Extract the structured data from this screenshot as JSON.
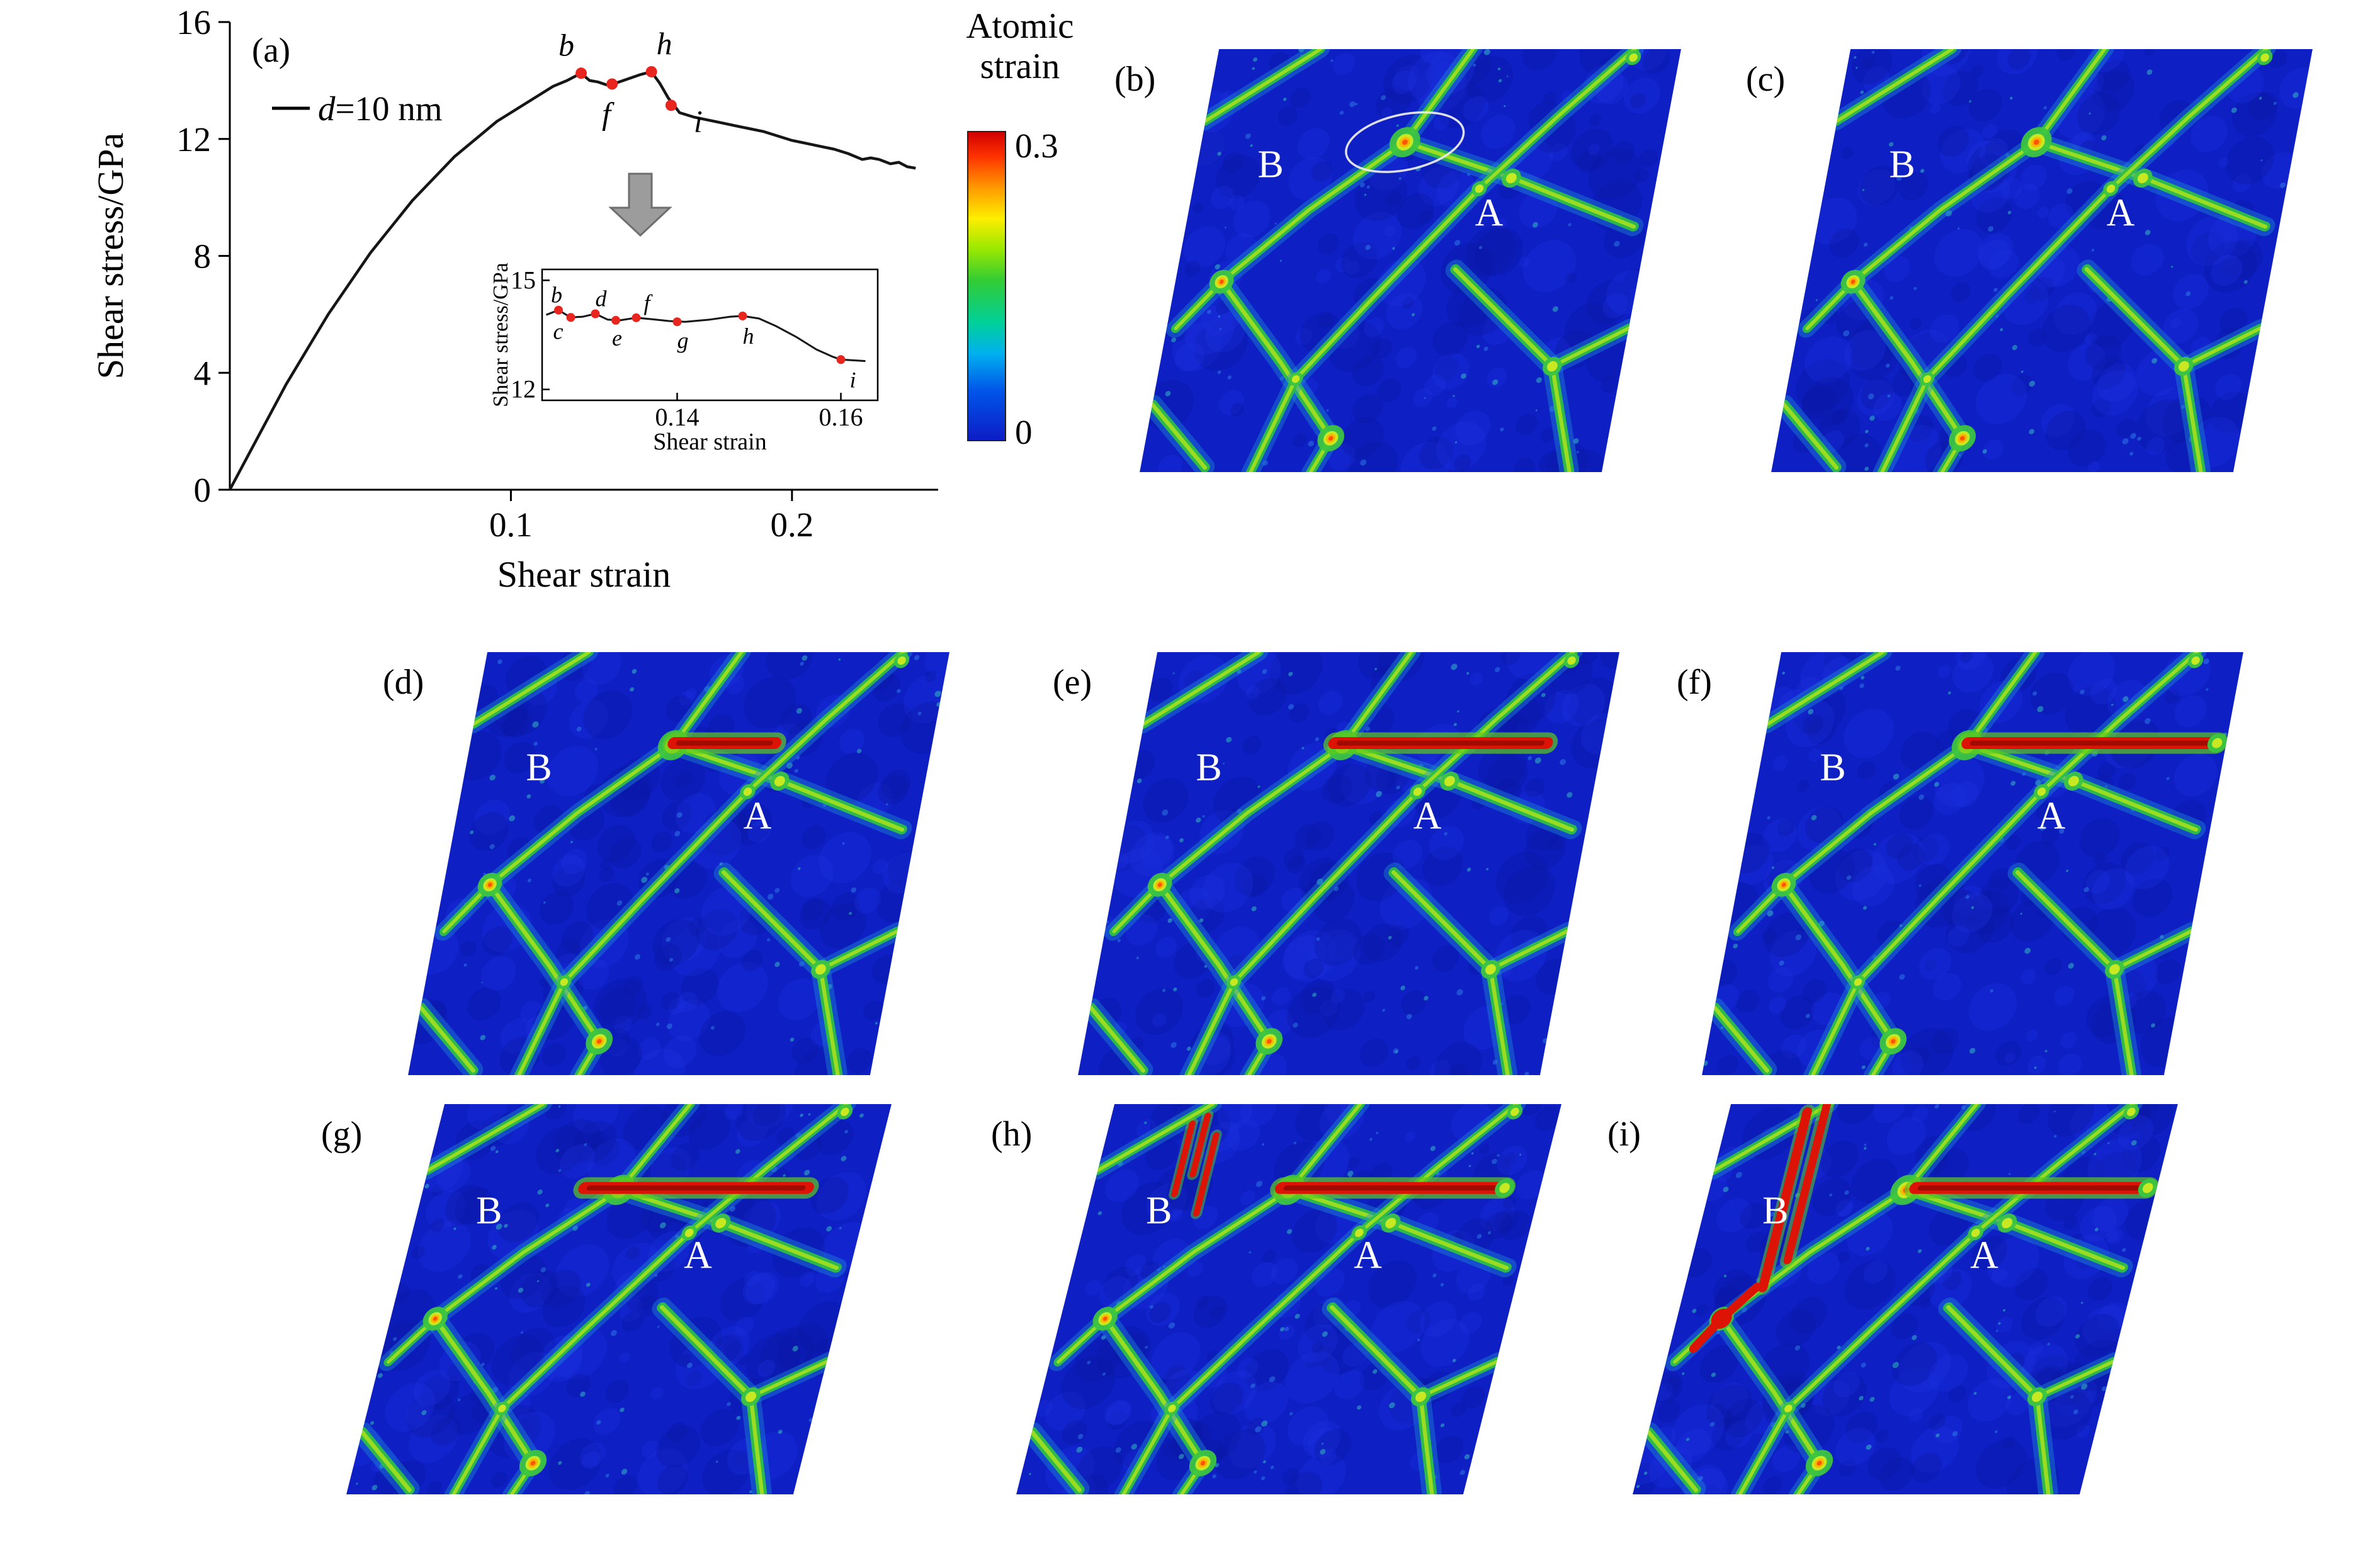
{
  "panel_a": {
    "label": "(a)",
    "legend_label": "d=10 nm"
  },
  "colorbar": {
    "title": "Atomic strain",
    "max_label": "0.3",
    "min_label": "0"
  },
  "panels": [
    {
      "id": "b",
      "label": "(b)",
      "grain_labels": {
        "left": "B",
        "center": "A"
      },
      "features": {
        "highlight_ellipse": true,
        "red_band": null,
        "red_streaks": "none"
      }
    },
    {
      "id": "c",
      "label": "(c)",
      "grain_labels": {
        "left": "B",
        "center": "A"
      },
      "features": {
        "highlight_ellipse": false,
        "red_band": null,
        "red_streaks": "none"
      }
    },
    {
      "id": "d",
      "label": "(d)",
      "grain_labels": {
        "left": "B",
        "center": "A"
      },
      "features": {
        "highlight_ellipse": false,
        "red_band": [
          0.44,
          0.66
        ],
        "red_streaks": "none"
      }
    },
    {
      "id": "e",
      "label": "(e)",
      "grain_labels": {
        "left": "B",
        "center": "A"
      },
      "features": {
        "highlight_ellipse": false,
        "red_band": [
          0.42,
          0.88
        ],
        "red_streaks": "none"
      }
    },
    {
      "id": "f",
      "label": "(f)",
      "grain_labels": {
        "left": "B",
        "center": "A"
      },
      "features": {
        "highlight_ellipse": false,
        "red_band": [
          0.44,
          0.98
        ],
        "red_streaks": "none"
      }
    },
    {
      "id": "g",
      "label": "(g)",
      "grain_labels": {
        "left": "B",
        "center": "A"
      },
      "features": {
        "highlight_ellipse": false,
        "red_band": [
          0.36,
          0.86
        ],
        "red_streaks": "none"
      }
    },
    {
      "id": "h",
      "label": "(h)",
      "grain_labels": {
        "left": "B",
        "center": "A"
      },
      "features": {
        "highlight_ellipse": false,
        "red_band": [
          0.42,
          0.92
        ],
        "red_streaks": "short"
      }
    },
    {
      "id": "i",
      "label": "(i)",
      "grain_labels": {
        "left": "B",
        "center": "A"
      },
      "features": {
        "highlight_ellipse": false,
        "red_band": [
          0.46,
          0.98
        ],
        "red_streaks": "long"
      }
    }
  ],
  "chart_data": {
    "type": "line",
    "title": "",
    "xlabel": "Shear strain",
    "ylabel": "Shear stress/GPa",
    "xlim": [
      0,
      0.252
    ],
    "ylim": [
      0,
      16
    ],
    "xticks": [
      0.1,
      0.2
    ],
    "yticks": [
      0,
      4,
      8,
      12,
      16
    ],
    "legend": [
      "d=10 nm"
    ],
    "series": [
      {
        "name": "d=10 nm",
        "x": [
          0,
          0.005,
          0.01,
          0.015,
          0.02,
          0.025,
          0.03,
          0.035,
          0.04,
          0.045,
          0.05,
          0.055,
          0.06,
          0.065,
          0.07,
          0.075,
          0.08,
          0.085,
          0.09,
          0.095,
          0.1,
          0.105,
          0.11,
          0.115,
          0.12,
          0.125,
          0.128,
          0.131,
          0.134,
          0.137,
          0.14,
          0.143,
          0.146,
          0.15,
          0.153,
          0.156,
          0.158,
          0.16,
          0.165,
          0.17,
          0.175,
          0.18,
          0.185,
          0.19,
          0.195,
          0.2,
          0.205,
          0.21,
          0.215,
          0.22,
          0.225,
          0.228,
          0.231,
          0.235,
          0.238,
          0.241,
          0.244
        ],
        "y": [
          0,
          0.9,
          1.8,
          2.7,
          3.6,
          4.4,
          5.2,
          6.0,
          6.7,
          7.4,
          8.1,
          8.7,
          9.3,
          9.9,
          10.4,
          10.9,
          11.4,
          11.8,
          12.2,
          12.6,
          12.9,
          13.2,
          13.5,
          13.8,
          14.0,
          14.25,
          14.0,
          13.95,
          13.85,
          13.9,
          14.0,
          14.1,
          14.2,
          14.3,
          13.9,
          13.4,
          13.15,
          12.9,
          12.75,
          12.65,
          12.55,
          12.45,
          12.35,
          12.25,
          12.1,
          11.95,
          11.85,
          11.75,
          11.65,
          11.5,
          11.3,
          11.35,
          11.3,
          11.15,
          11.2,
          11.05,
          11.0
        ]
      }
    ],
    "marked_points": [
      {
        "label": "b",
        "x": 0.125,
        "y": 14.25
      },
      {
        "label": "f",
        "x": 0.136,
        "y": 13.88
      },
      {
        "label": "h",
        "x": 0.15,
        "y": 14.3
      },
      {
        "label": "i",
        "x": 0.157,
        "y": 13.15
      }
    ],
    "inset": {
      "xlabel": "Shear strain",
      "ylabel": "Shear stress/GPa",
      "xlim": [
        0.1235,
        0.1645
      ],
      "ylim": [
        11.7,
        15.3
      ],
      "xticks": [
        0.14,
        0.16
      ],
      "yticks": [
        15,
        12
      ],
      "x": [
        0.124,
        0.1255,
        0.127,
        0.1285,
        0.13,
        0.1315,
        0.133,
        0.135,
        0.137,
        0.139,
        0.141,
        0.144,
        0.1465,
        0.148,
        0.15,
        0.152,
        0.1545,
        0.157,
        0.159,
        0.16,
        0.1615,
        0.163
      ],
      "y": [
        14.05,
        14.18,
        13.98,
        14.0,
        14.08,
        13.92,
        13.9,
        13.97,
        13.93,
        13.88,
        13.86,
        13.92,
        14.0,
        14.02,
        13.95,
        13.75,
        13.45,
        13.1,
        12.9,
        12.82,
        12.8,
        12.78
      ],
      "marked_points": [
        {
          "label": "b",
          "x": 0.1255,
          "y": 14.18
        },
        {
          "label": "c",
          "x": 0.127,
          "y": 13.98
        },
        {
          "label": "d",
          "x": 0.13,
          "y": 14.08
        },
        {
          "label": "e",
          "x": 0.1325,
          "y": 13.9
        },
        {
          "label": "f",
          "x": 0.135,
          "y": 13.97
        },
        {
          "label": "g",
          "x": 0.14,
          "y": 13.86
        },
        {
          "label": "h",
          "x": 0.148,
          "y": 14.02
        },
        {
          "label": "i",
          "x": 0.16,
          "y": 12.82
        }
      ]
    }
  }
}
